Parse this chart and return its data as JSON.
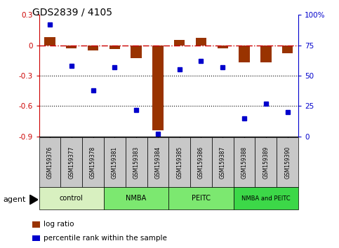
{
  "title": "GDS2839 / 4105",
  "samples": [
    "GSM159376",
    "GSM159377",
    "GSM159378",
    "GSM159381",
    "GSM159383",
    "GSM159384",
    "GSM159385",
    "GSM159386",
    "GSM159387",
    "GSM159388",
    "GSM159389",
    "GSM159390"
  ],
  "log_ratio": [
    0.08,
    -0.03,
    -0.05,
    -0.04,
    -0.13,
    -0.84,
    0.05,
    0.07,
    -0.03,
    -0.17,
    -0.17,
    -0.08
  ],
  "percentile_rank": [
    92,
    58,
    38,
    57,
    22,
    2,
    55,
    62,
    57,
    15,
    27,
    20
  ],
  "group_labels": [
    "control",
    "NMBA",
    "PEITC",
    "NMBA and PEITC"
  ],
  "group_ranges": [
    [
      0,
      3
    ],
    [
      3,
      6
    ],
    [
      6,
      9
    ],
    [
      9,
      12
    ]
  ],
  "group_colors": [
    "#d8f0c0",
    "#7ce870",
    "#7ce870",
    "#3cd848"
  ],
  "ylim_left": [
    -0.9,
    0.3
  ],
  "ylim_right": [
    0,
    100
  ],
  "left_yticks": [
    -0.9,
    -0.6,
    -0.3,
    0.0,
    0.3
  ],
  "right_yticks": [
    0,
    25,
    50,
    75,
    100
  ],
  "bar_color": "#993300",
  "dot_color": "#0000cc",
  "hline_color": "#cc0000",
  "dotline_vals": [
    -0.3,
    -0.6
  ],
  "agent_label": "agent",
  "legend_items": [
    {
      "label": "log ratio",
      "color": "#993300"
    },
    {
      "label": "percentile rank within the sample",
      "color": "#0000cc"
    }
  ],
  "sample_box_color": "#c8c8c8",
  "bar_width": 0.5
}
